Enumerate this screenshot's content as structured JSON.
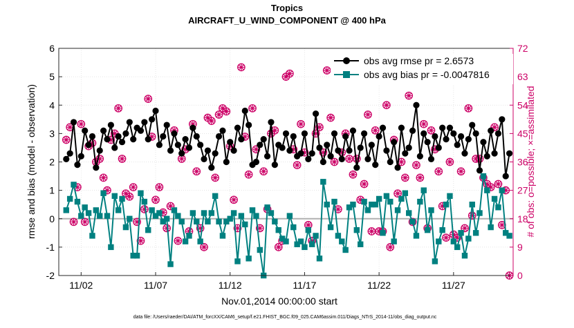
{
  "chart_data": {
    "type": "line",
    "title": "Tropics",
    "subtitle": "AIRCRAFT_U_WIND_COMPONENT @ 400 hPa",
    "xlabel": "Nov.01,2014 00:00:00 start",
    "ylabel_left": "rmse and bias (model - observation)",
    "ylabel_right": "# of obs: o=possible; ×=assimilated",
    "footer": "data file: /Users/raeder/DAI/ATM_forcXX/CAM6_setup/f.e21.FHIST_BGC.f09_025.CAM6assim.011/Diags_NTrS_2014-11/obs_diag_output.nc",
    "xlim": [
      0.5,
      31
    ],
    "ylim_left": [
      -2,
      6
    ],
    "ylim_right": [
      0,
      72
    ],
    "yticks_left": [
      -2,
      -1,
      0,
      1,
      2,
      3,
      4,
      5,
      6
    ],
    "yticks_right": [
      0,
      9,
      18,
      27,
      36,
      45,
      54,
      63,
      72
    ],
    "xticks": [
      {
        "value": 2,
        "label": "11/02"
      },
      {
        "value": 7,
        "label": "11/07"
      },
      {
        "value": 12,
        "label": "11/12"
      },
      {
        "value": 17,
        "label": "11/17"
      },
      {
        "value": 22,
        "label": "11/22"
      },
      {
        "value": 27,
        "label": "11/27"
      }
    ],
    "x": [
      1.0,
      1.25,
      1.5,
      1.75,
      2.0,
      2.25,
      2.5,
      2.75,
      3.0,
      3.25,
      3.5,
      3.75,
      4.0,
      4.25,
      4.5,
      4.75,
      5.0,
      5.25,
      5.5,
      5.75,
      6.0,
      6.25,
      6.5,
      6.75,
      7.0,
      7.25,
      7.5,
      7.75,
      8.0,
      8.25,
      8.5,
      8.75,
      9.0,
      9.25,
      9.5,
      9.75,
      10.0,
      10.25,
      10.5,
      10.75,
      11.0,
      11.25,
      11.5,
      11.75,
      12.0,
      12.25,
      12.5,
      12.75,
      13.0,
      13.25,
      13.5,
      13.75,
      14.0,
      14.25,
      14.5,
      14.75,
      15.0,
      15.25,
      15.5,
      15.75,
      16.0,
      16.25,
      16.5,
      16.75,
      17.0,
      17.25,
      17.5,
      17.75,
      18.0,
      18.25,
      18.5,
      18.75,
      19.0,
      19.25,
      19.5,
      19.75,
      20.0,
      20.25,
      20.5,
      20.75,
      21.0,
      21.25,
      21.5,
      21.75,
      22.0,
      22.25,
      22.5,
      22.75,
      23.0,
      23.25,
      23.5,
      23.75,
      24.0,
      24.25,
      24.5,
      24.75,
      25.0,
      25.25,
      25.5,
      25.75,
      26.0,
      26.25,
      26.5,
      26.75,
      27.0,
      27.25,
      27.5,
      27.75,
      28.0,
      28.25,
      28.5,
      28.75,
      29.0,
      29.25,
      29.5,
      29.75,
      30.0,
      30.25,
      30.5,
      30.75
    ],
    "series": [
      {
        "name": "obs avg rmse pr = 2.6573",
        "color": "#000000",
        "marker": "circle",
        "values": [
          2.1,
          2.3,
          3.4,
          1.9,
          2.2,
          3.1,
          2.6,
          2.9,
          1.8,
          2.4,
          3.1,
          2.8,
          3.3,
          2.5,
          2.9,
          2.7,
          3.0,
          3.4,
          2.8,
          3.2,
          3.1,
          3.4,
          2.8,
          3.5,
          3.8,
          2.6,
          2.9,
          3.3,
          2.4,
          3.0,
          2.6,
          2.3,
          2.8,
          2.5,
          3.2,
          2.9,
          2.6,
          2.1,
          2.4,
          1.8,
          2.3,
          2.9,
          3.1,
          2.0,
          2.7,
          2.4,
          3.2,
          2.8,
          3.8,
          3.3,
          1.9,
          2.0,
          2.6,
          2.8,
          2.2,
          3.4,
          1.9,
          2.6,
          2.5,
          3.0,
          2.4,
          2.9,
          2.2,
          2.3,
          3.0,
          2.1,
          2.3,
          3.7,
          2.5,
          2.0,
          2.6,
          2.2,
          3.0,
          2.4,
          2.1,
          2.9,
          2.4,
          3.1,
          1.8,
          2.5,
          3.0,
          2.1,
          2.6,
          1.9,
          2.9,
          3.2,
          2.4,
          2.0,
          2.7,
          1.8,
          3.2,
          2.3,
          2.5,
          3.1,
          4.0,
          2.2,
          3.0,
          2.7,
          2.1,
          2.9,
          2.5,
          3.2,
          2.8,
          3.2,
          3.0,
          2.6,
          2.9,
          2.3,
          2.8,
          3.3,
          3.0,
          1.7,
          2.7,
          2.2,
          3.1,
          2.3,
          3.0,
          3.5,
          1.5,
          2.3
        ]
      },
      {
        "name": "obs avg bias pr = -0.0047816",
        "color": "#008080",
        "marker": "square",
        "values": [
          0.3,
          0.7,
          1.2,
          0.6,
          0.1,
          0.4,
          0.2,
          -0.6,
          0.3,
          0.1,
          0.9,
          0.1,
          -1.0,
          0.8,
          0.3,
          0.7,
          -0.3,
          0.0,
          -1.3,
          -1.3,
          0.9,
          0.6,
          -0.4,
          0.3,
          0.1,
          0.2,
          -0.1,
          0.0,
          -1.6,
          0.3,
          0.1,
          -0.1,
          -0.8,
          -0.6,
          0.2,
          -0.1,
          -0.8,
          0.2,
          -0.1,
          0.2,
          0.8,
          -0.1,
          -0.6,
          -0.1,
          0.0,
          0.2,
          -1.5,
          0.1,
          -0.2,
          -1.4,
          0.3,
          0.1,
          -1.1,
          -2.0,
          0.4,
          0.2,
          -0.1,
          -0.4,
          -0.7,
          -0.8,
          0.1,
          -0.3,
          -0.9,
          -0.8,
          -1.0,
          -0.4,
          -0.9,
          -0.6,
          -1.4,
          1.3,
          0.5,
          -0.3,
          0.6,
          -0.6,
          -0.8,
          -1.1,
          0.4,
          0.5,
          -0.4,
          -0.9,
          0.6,
          0.3,
          0.5,
          0.5,
          0.7,
          -0.5,
          0.8,
          0.6,
          -0.8,
          0.3,
          0.7,
          0.9,
          0.2,
          -0.1,
          -0.6,
          0.6,
          1.0,
          -0.4,
          0.3,
          -1.5,
          -0.8,
          -0.4,
          0.5,
          0.8,
          -0.8,
          -1.0,
          -0.5,
          -1.3,
          -0.7,
          0.5,
          -0.5,
          0.2,
          1.5,
          1.0,
          -0.3,
          0.7,
          0.4,
          1.0,
          -0.5,
          -0.6
        ]
      }
    ],
    "obs_possible": {
      "name": "possible",
      "color": "#cc0066",
      "values": [
        43,
        47,
        17,
        28,
        48,
        17,
        41,
        42,
        36,
        37,
        31,
        27,
        43,
        45,
        53,
        37,
        26,
        25,
        28,
        17,
        11,
        21,
        56,
        44,
        24,
        28,
        20,
        15,
        22,
        46,
        11,
        37,
        40,
        14,
        48,
        33,
        15,
        9,
        50,
        49,
        31,
        51,
        53,
        52,
        41,
        24,
        15,
        66,
        44,
        32,
        53,
        40,
        15,
        33,
        21,
        45,
        46,
        9,
        11,
        63,
        64,
        40,
        35,
        48,
        39,
        16,
        11,
        45,
        47,
        39,
        65,
        50,
        36,
        21,
        39,
        45,
        37,
        32,
        37,
        24,
        29,
        51,
        14,
        46,
        14,
        14,
        54,
        9,
        43,
        26,
        36,
        31,
        57,
        17,
        35,
        31,
        48,
        15,
        46,
        40,
        33,
        22,
        12,
        36,
        13,
        12,
        33,
        15,
        53,
        19,
        37,
        37,
        31,
        29,
        28,
        47,
        29,
        16,
        27,
        0
      ]
    },
    "obs_assimilated": {
      "name": "assimilated",
      "color": "#cc0066",
      "values": [
        43,
        47,
        17,
        28,
        48,
        17,
        41,
        42,
        36,
        37,
        31,
        27,
        43,
        45,
        53,
        37,
        26,
        25,
        28,
        17,
        11,
        21,
        56,
        44,
        24,
        28,
        20,
        15,
        22,
        46,
        11,
        37,
        40,
        14,
        48,
        33,
        15,
        9,
        50,
        49,
        31,
        51,
        53,
        52,
        41,
        24,
        15,
        66,
        44,
        32,
        53,
        40,
        15,
        33,
        21,
        45,
        46,
        9,
        11,
        63,
        64,
        40,
        35,
        48,
        39,
        16,
        11,
        45,
        47,
        39,
        65,
        50,
        36,
        21,
        39,
        45,
        37,
        32,
        37,
        24,
        29,
        51,
        14,
        46,
        14,
        14,
        54,
        9,
        43,
        26,
        36,
        31,
        57,
        17,
        35,
        31,
        48,
        15,
        46,
        40,
        33,
        22,
        12,
        36,
        13,
        12,
        33,
        15,
        53,
        19,
        37,
        37,
        31,
        29,
        28,
        47,
        29,
        16,
        27,
        0
      ]
    },
    "reference_line": {
      "value": 0,
      "color": "#b0b0b0"
    },
    "grid": true,
    "legend": "top-right"
  }
}
